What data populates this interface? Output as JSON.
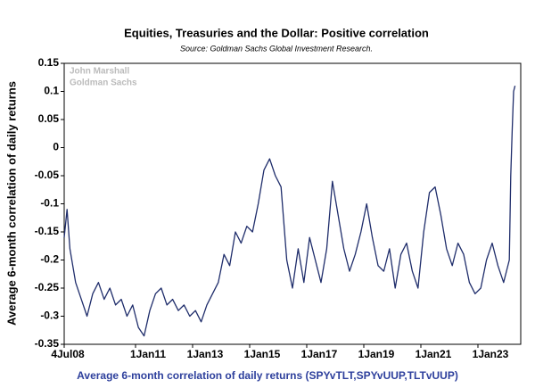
{
  "chart_data": {
    "type": "line",
    "title": "Equities, Treasuries and the Dollar: Positive correlation",
    "subtitle": "Source: Goldman Sachs Global Investment Research.",
    "annotations": [
      "John Marshall",
      "Goldman Sachs"
    ],
    "y_label": "Average 6-month correlation of daily returns",
    "x_label": "Average 6-month correlation of daily returns (SPYvTLT,SPYvUUP,TLTvUUP)",
    "xlim": [
      2008.5,
      2024.5
    ],
    "xticks": [
      {
        "value": 2008.5,
        "label": "4Jul08"
      },
      {
        "value": 2011,
        "label": "1Jan11"
      },
      {
        "value": 2013,
        "label": "1Jan13"
      },
      {
        "value": 2015,
        "label": "1Jan15"
      },
      {
        "value": 2017,
        "label": "1Jan17"
      },
      {
        "value": 2019,
        "label": "1Jan19"
      },
      {
        "value": 2021,
        "label": "1Jan21"
      },
      {
        "value": 2023,
        "label": "1Jan23"
      }
    ],
    "ylim": [
      -0.35,
      0.15
    ],
    "yticks": [
      0.15,
      0.1,
      0.05,
      0,
      -0.05,
      -0.1,
      -0.15,
      -0.2,
      -0.25,
      -0.3,
      -0.35
    ],
    "grid": false,
    "series": [
      {
        "name": "Average 6-month correlation",
        "color": "#1f2d6b",
        "x": [
          2008.5,
          2008.6,
          2008.7,
          2008.9,
          2009.1,
          2009.3,
          2009.5,
          2009.7,
          2009.9,
          2010.1,
          2010.3,
          2010.5,
          2010.7,
          2010.9,
          2011.1,
          2011.3,
          2011.5,
          2011.7,
          2011.9,
          2012.1,
          2012.3,
          2012.5,
          2012.7,
          2012.9,
          2013.1,
          2013.3,
          2013.5,
          2013.7,
          2013.9,
          2014.1,
          2014.3,
          2014.5,
          2014.7,
          2014.9,
          2015.1,
          2015.3,
          2015.5,
          2015.7,
          2015.9,
          2016.1,
          2016.3,
          2016.5,
          2016.7,
          2016.9,
          2017.1,
          2017.3,
          2017.5,
          2017.7,
          2017.9,
          2018.1,
          2018.3,
          2018.5,
          2018.7,
          2018.9,
          2019.1,
          2019.3,
          2019.5,
          2019.7,
          2019.9,
          2020.1,
          2020.3,
          2020.5,
          2020.7,
          2020.9,
          2021.1,
          2021.3,
          2021.5,
          2021.7,
          2021.9,
          2022.1,
          2022.3,
          2022.5,
          2022.7,
          2022.9,
          2023.1,
          2023.3,
          2023.5,
          2023.7,
          2023.9,
          2024.0,
          2024.1,
          2024.15,
          2024.2,
          2024.25,
          2024.3
        ],
        "values": [
          -0.16,
          -0.11,
          -0.18,
          -0.24,
          -0.27,
          -0.3,
          -0.26,
          -0.24,
          -0.27,
          -0.25,
          -0.28,
          -0.27,
          -0.3,
          -0.28,
          -0.32,
          -0.335,
          -0.29,
          -0.26,
          -0.25,
          -0.28,
          -0.27,
          -0.29,
          -0.28,
          -0.3,
          -0.29,
          -0.31,
          -0.28,
          -0.26,
          -0.24,
          -0.19,
          -0.21,
          -0.15,
          -0.17,
          -0.14,
          -0.15,
          -0.1,
          -0.04,
          -0.02,
          -0.05,
          -0.07,
          -0.2,
          -0.25,
          -0.18,
          -0.24,
          -0.16,
          -0.2,
          -0.24,
          -0.18,
          -0.06,
          -0.12,
          -0.18,
          -0.22,
          -0.19,
          -0.15,
          -0.1,
          -0.16,
          -0.21,
          -0.22,
          -0.18,
          -0.25,
          -0.19,
          -0.17,
          -0.22,
          -0.25,
          -0.15,
          -0.08,
          -0.07,
          -0.12,
          -0.18,
          -0.21,
          -0.17,
          -0.19,
          -0.24,
          -0.26,
          -0.25,
          -0.2,
          -0.17,
          -0.21,
          -0.24,
          -0.22,
          -0.2,
          -0.05,
          0.03,
          0.1,
          0.11
        ]
      }
    ]
  }
}
